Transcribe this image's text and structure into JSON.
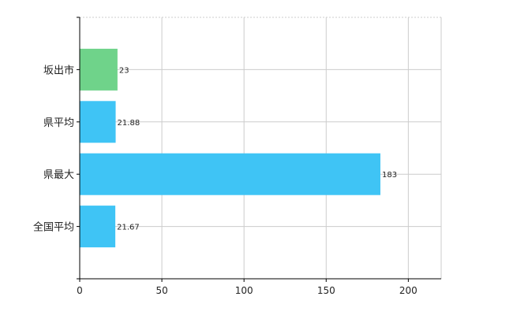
{
  "chart_data": {
    "type": "bar",
    "orientation": "horizontal",
    "categories": [
      "坂出市",
      "県平均",
      "県最大",
      "全国平均"
    ],
    "values": [
      23,
      21.88,
      183,
      21.67
    ],
    "value_labels": [
      "23",
      "21.88",
      "183",
      "21.67"
    ],
    "bar_colors": [
      "#6fd38a",
      "#3fc4f5",
      "#3fc4f5",
      "#3fc4f5"
    ],
    "title": "",
    "xlabel": "",
    "ylabel": "",
    "xlim": [
      0,
      220
    ],
    "xticks": [
      0,
      50,
      100,
      150,
      200
    ],
    "xtick_labels": [
      "0",
      "50",
      "100",
      "150",
      "200"
    ],
    "grid": true,
    "grid_color": "#cccccc",
    "axis_color": "#000000",
    "legend": "none"
  }
}
